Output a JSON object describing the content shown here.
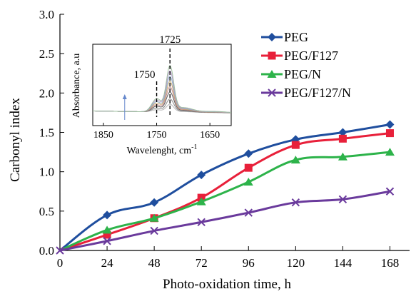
{
  "chart_data": {
    "type": "line",
    "title": "",
    "xlabel": "Photo-oxidation time, h",
    "ylabel": "Carbonyl index",
    "x": [
      0,
      24,
      48,
      72,
      96,
      120,
      144,
      168
    ],
    "xlim": [
      0,
      178
    ],
    "ylim": [
      0,
      3.0
    ],
    "x_ticks": [
      "0",
      "24",
      "48",
      "72",
      "96",
      "120",
      "144",
      "168"
    ],
    "y_ticks": [
      "0.0",
      "0.5",
      "1.0",
      "1.5",
      "2.0",
      "2.5",
      "3.0"
    ],
    "grid": false,
    "legend_position": "top-right",
    "series": [
      {
        "name": "PEG",
        "color": "#1f4e9e",
        "marker": "diamond",
        "values": [
          0.0,
          0.45,
          0.61,
          0.96,
          1.23,
          1.41,
          1.5,
          1.6
        ]
      },
      {
        "name": "PEG/F127",
        "color": "#e8203a",
        "marker": "square",
        "values": [
          0.0,
          0.2,
          0.41,
          0.67,
          1.05,
          1.34,
          1.42,
          1.49
        ]
      },
      {
        "name": "PEG/N",
        "color": "#2db34a",
        "marker": "triangle",
        "values": [
          0.0,
          0.26,
          0.41,
          0.62,
          0.87,
          1.15,
          1.19,
          1.25
        ]
      },
      {
        "name": "PEG/F127/N",
        "color": "#6a3a9c",
        "marker": "x",
        "values": [
          0.0,
          0.12,
          0.25,
          0.36,
          0.48,
          0.61,
          0.65,
          0.75
        ]
      }
    ],
    "inset": {
      "type": "line",
      "xlabel_text": "Wavelenght, cm",
      "xlabel_sup": "-1",
      "ylabel": "Absorbance, a.u",
      "x_ticks": [
        1850,
        1750,
        1650
      ],
      "xlim": [
        1870,
        1610
      ],
      "x_tick_labels": [
        "1850",
        "1750",
        "1650"
      ],
      "peak_labels": [
        {
          "text": "1725",
          "x": 1725
        },
        {
          "text": "1750",
          "x": 1750
        }
      ],
      "spectra_colors": [
        "#b8b8b8",
        "#888888",
        "#5a5a5a",
        "#c98f8f",
        "#c9a86f",
        "#8fb0c9",
        "#b59ac9",
        "#9fc0a0"
      ],
      "spectra_amplitudes": [
        0.15,
        0.25,
        0.38,
        0.48,
        0.58,
        0.68,
        0.78,
        0.88
      ],
      "arrow_color": "#6688cc"
    }
  }
}
